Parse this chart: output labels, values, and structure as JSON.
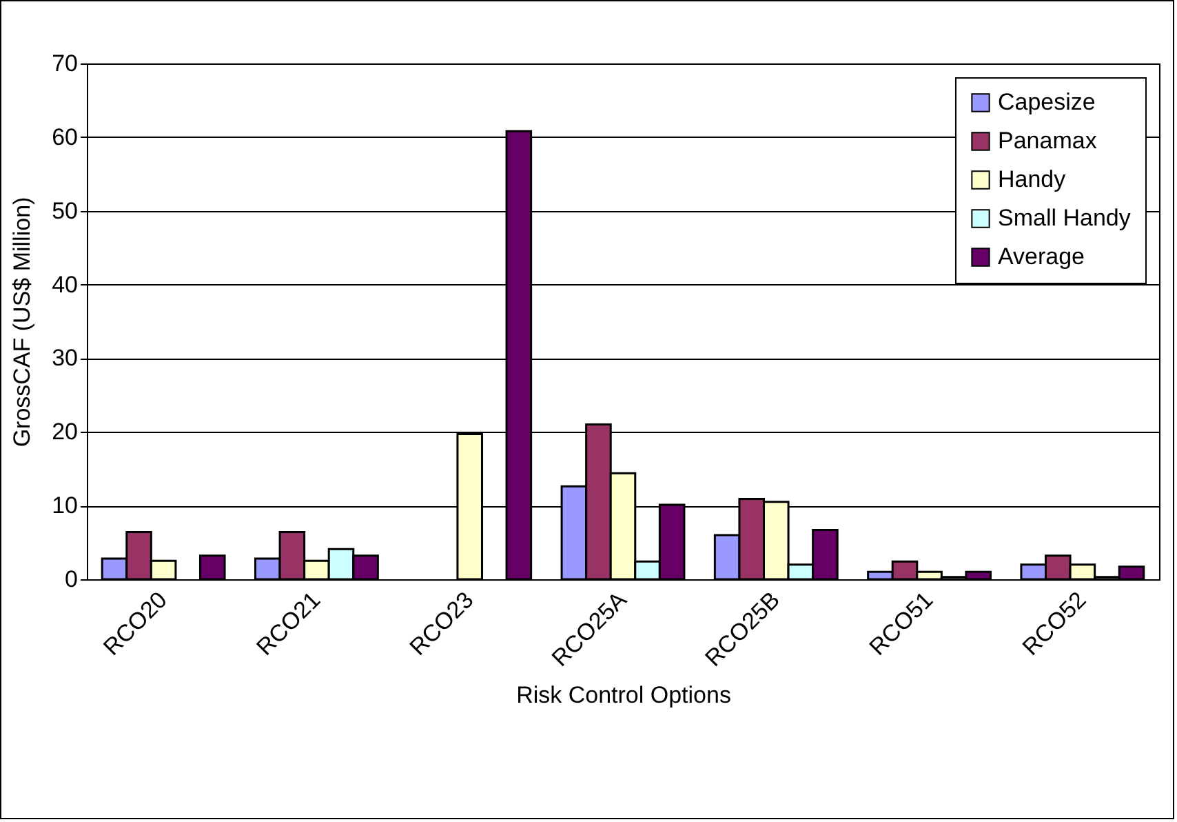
{
  "chart_data": {
    "type": "bar",
    "xlabel": "Risk Control Options",
    "ylabel": "GrossCAF (US$ Million)",
    "categories": [
      "RCO20",
      "RCO21",
      "RCO23",
      "RCO25A",
      "RCO25B",
      "RCO51",
      "RCO52"
    ],
    "series": [
      {
        "name": "Capesize",
        "color": "#9999ff",
        "values": [
          2.8,
          2.8,
          null,
          12.6,
          6.0,
          1.0,
          2.0
        ]
      },
      {
        "name": "Panamax",
        "color": "#993366",
        "values": [
          6.4,
          6.4,
          null,
          21.0,
          10.9,
          2.4,
          3.2
        ]
      },
      {
        "name": "Handy",
        "color": "#ffffcc",
        "values": [
          2.5,
          2.5,
          19.7,
          14.4,
          10.5,
          1.0,
          2.0
        ]
      },
      {
        "name": "Small Handy",
        "color": "#ccffff",
        "values": [
          null,
          4.1,
          null,
          2.4,
          2.0,
          0.3,
          0.3
        ]
      },
      {
        "name": "Average",
        "color": "#660066",
        "values": [
          3.2,
          3.2,
          60.8,
          10.1,
          6.7,
          1.0,
          1.7
        ]
      }
    ],
    "ylim": [
      0,
      70
    ],
    "yticks": [
      0,
      10,
      20,
      30,
      40,
      50,
      60,
      70
    ],
    "grid": "y",
    "legend": "top right"
  }
}
